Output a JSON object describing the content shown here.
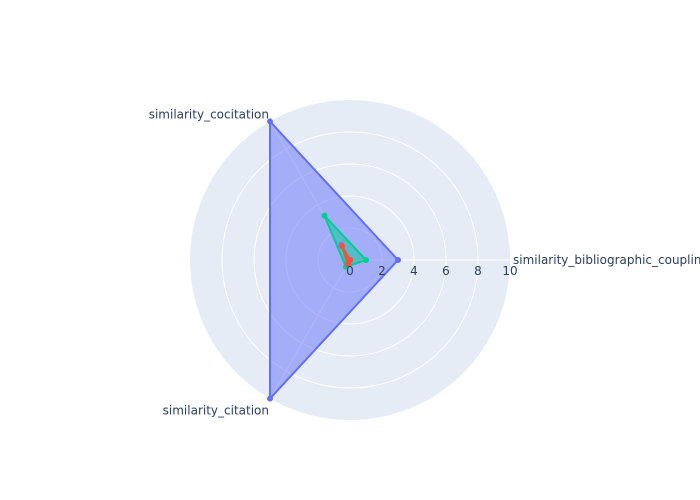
{
  "chart_data": {
    "type": "radar",
    "radial_range": [
      0,
      10
    ],
    "radial_ticks": [
      "0",
      "2",
      "4",
      "6",
      "8",
      "10"
    ],
    "axes": [
      "similarity_bibliographic_coupling",
      "similarity_cocitation",
      "similarity_citation"
    ],
    "series": [
      {
        "values": [
          3,
          10,
          10
        ],
        "color": "#636efa",
        "fill_opacity": 0.5
      },
      {
        "values": [
          1,
          3.2,
          0.5
        ],
        "color": "#00cc96",
        "fill_opacity": 0.5
      },
      {
        "values": [
          0,
          1.1,
          0.2
        ],
        "color": "#ab63fa",
        "fill_opacity": 0.5
      },
      {
        "values": [
          0,
          1.0,
          0.3
        ],
        "color": "#ef553b",
        "fill_opacity": 0.5
      }
    ],
    "background_color": "#e5ecf6",
    "grid": true,
    "legend": "none"
  }
}
